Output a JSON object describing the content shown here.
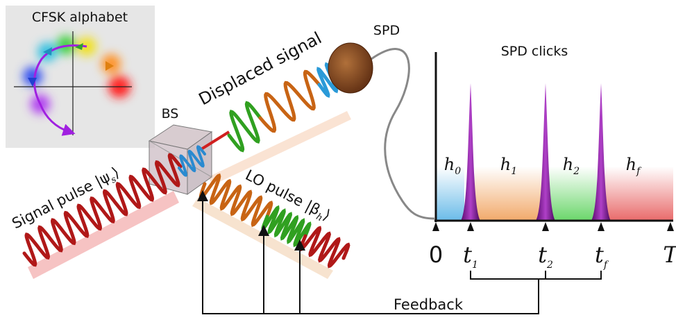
{
  "inset": {
    "title": "CFSK alphabet"
  },
  "labels": {
    "bs": "BS",
    "displaced": "Displaced signal",
    "spd": "SPD",
    "signal_pulse": {
      "text": "Signal pulse |ψ",
      "sub": "s",
      "close": "⟩"
    },
    "lo_pulse": {
      "text": "LO pulse |β",
      "sub": "h",
      "close": "⟩"
    }
  },
  "clicks_panel": {
    "title": "SPD clicks",
    "regions": [
      {
        "main": "h",
        "sub": "0"
      },
      {
        "main": "h",
        "sub": "1"
      },
      {
        "main": "h",
        "sub": "2"
      },
      {
        "main": "h",
        "sub": "f"
      }
    ],
    "ticks": [
      {
        "main": "0"
      },
      {
        "main": "t",
        "sub": "1"
      },
      {
        "main": "t",
        "sub": "2"
      },
      {
        "main": "t",
        "sub": "f"
      },
      {
        "main": "T"
      }
    ]
  },
  "feedback": "Feedback"
}
